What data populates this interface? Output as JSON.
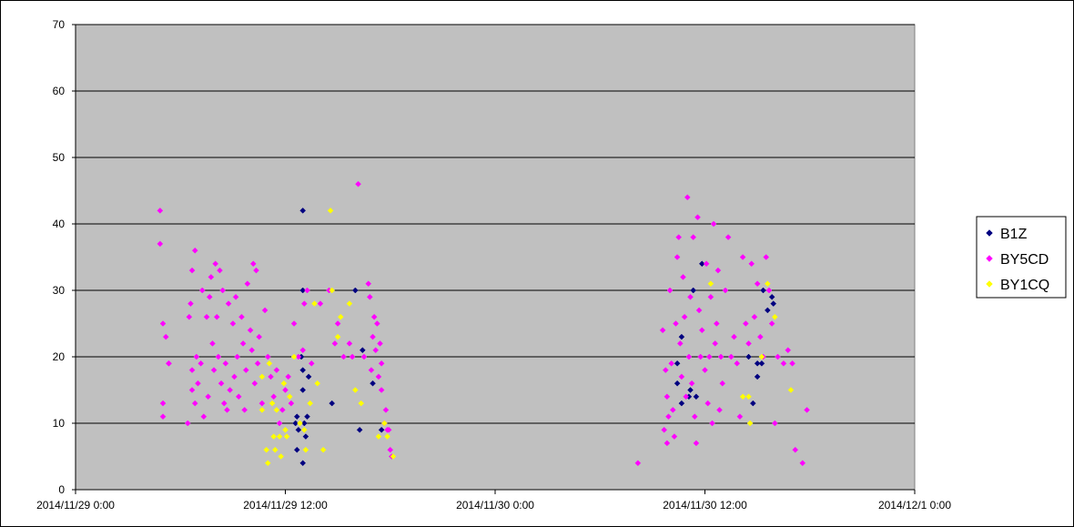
{
  "chart_data": {
    "type": "scatter",
    "title": "",
    "xlabel": "",
    "ylabel": "",
    "xlim": [
      "2014/11/29 0:00",
      "2014/12/1 0:00"
    ],
    "ylim": [
      0,
      70
    ],
    "x_ticks": [
      "2014/11/29 0:00",
      "2014/11/29 12:00",
      "2014/11/30 0:00",
      "2014/11/30 12:00",
      "2014/12/1 0:00"
    ],
    "y_ticks": [
      0,
      10,
      20,
      30,
      40,
      50,
      60,
      70
    ],
    "grid": true,
    "legend_position": "right",
    "plot_background": "#c0c0c0",
    "series": [
      {
        "name": "B1Z",
        "color": "#000080",
        "points": [
          [
            "2014/11/29 13:00",
            42
          ],
          [
            "2014/11/29 13:00",
            30
          ],
          [
            "2014/11/29 13:15",
            30
          ],
          [
            "2014/11/29 16:00",
            30
          ],
          [
            "2014/11/29 12:55",
            20
          ],
          [
            "2014/11/29 13:00",
            18
          ],
          [
            "2014/11/29 13:20",
            17
          ],
          [
            "2014/11/29 13:00",
            15
          ],
          [
            "2014/11/29 12:40",
            11
          ],
          [
            "2014/11/29 12:35",
            10
          ],
          [
            "2014/11/29 13:05",
            10
          ],
          [
            "2014/11/29 13:15",
            11
          ],
          [
            "2014/11/29 12:45",
            9
          ],
          [
            "2014/11/29 13:10",
            8
          ],
          [
            "2014/11/29 12:40",
            6
          ],
          [
            "2014/11/29 13:00",
            4
          ],
          [
            "2014/11/29 14:40",
            13
          ],
          [
            "2014/11/29 16:25",
            21
          ],
          [
            "2014/11/29 17:00",
            16
          ],
          [
            "2014/11/29 16:15",
            9
          ],
          [
            "2014/11/29 17:30",
            9
          ],
          [
            "2014/11/30 10:25",
            19
          ],
          [
            "2014/11/30 10:40",
            23
          ],
          [
            "2014/11/30 10:25",
            16
          ],
          [
            "2014/11/30 10:40",
            13
          ],
          [
            "2014/11/30 11:05",
            14
          ],
          [
            "2014/11/30 11:10",
            15
          ],
          [
            "2014/11/30 11:20",
            30
          ],
          [
            "2014/11/30 11:30",
            14
          ],
          [
            "2014/11/30 11:50",
            34
          ],
          [
            "2014/11/30 14:30",
            20
          ],
          [
            "2014/11/30 14:45",
            13
          ],
          [
            "2014/11/30 15:00",
            19
          ],
          [
            "2014/11/30 15:00",
            17
          ],
          [
            "2014/11/30 15:15",
            19
          ],
          [
            "2014/11/30 15:20",
            30
          ],
          [
            "2014/11/30 15:35",
            27
          ],
          [
            "2014/11/30 15:50",
            29
          ],
          [
            "2014/11/30 15:55",
            28
          ]
        ]
      },
      {
        "name": "BY5CD",
        "color": "#ff00ff",
        "points": [
          [
            "2014/11/29 4:50",
            42
          ],
          [
            "2014/11/29 4:50",
            37
          ],
          [
            "2014/11/29 5:00",
            25
          ],
          [
            "2014/11/29 5:10",
            23
          ],
          [
            "2014/11/29 5:20",
            19
          ],
          [
            "2014/11/29 5:00",
            13
          ],
          [
            "2014/11/29 5:00",
            11
          ],
          [
            "2014/11/29 5:20",
            19
          ],
          [
            "2014/11/29 6:25",
            10
          ],
          [
            "2014/11/29 6:30",
            26
          ],
          [
            "2014/11/29 6:40",
            33
          ],
          [
            "2014/11/29 6:50",
            36
          ],
          [
            "2014/11/29 6:35",
            28
          ],
          [
            "2014/11/29 6:40",
            18
          ],
          [
            "2014/11/29 6:40",
            15
          ],
          [
            "2014/11/29 6:50",
            13
          ],
          [
            "2014/11/29 6:55",
            20
          ],
          [
            "2014/11/29 7:00",
            16
          ],
          [
            "2014/11/29 7:10",
            19
          ],
          [
            "2014/11/29 7:15",
            30
          ],
          [
            "2014/11/29 7:20",
            11
          ],
          [
            "2014/11/29 7:30",
            26
          ],
          [
            "2014/11/29 7:35",
            14
          ],
          [
            "2014/11/29 7:40",
            29
          ],
          [
            "2014/11/29 7:45",
            32
          ],
          [
            "2014/11/29 7:50",
            22
          ],
          [
            "2014/11/29 7:55",
            18
          ],
          [
            "2014/11/29 8:00",
            34
          ],
          [
            "2014/11/29 8:05",
            26
          ],
          [
            "2014/11/29 8:10",
            20
          ],
          [
            "2014/11/29 8:15",
            33
          ],
          [
            "2014/11/29 8:20",
            16
          ],
          [
            "2014/11/29 8:25",
            30
          ],
          [
            "2014/11/29 8:30",
            13
          ],
          [
            "2014/11/29 8:35",
            19
          ],
          [
            "2014/11/29 8:40",
            12
          ],
          [
            "2014/11/29 8:45",
            28
          ],
          [
            "2014/11/29 8:50",
            15
          ],
          [
            "2014/11/29 9:00",
            25
          ],
          [
            "2014/11/29 9:05",
            17
          ],
          [
            "2014/11/29 9:10",
            29
          ],
          [
            "2014/11/29 9:15",
            20
          ],
          [
            "2014/11/29 9:20",
            14
          ],
          [
            "2014/11/29 9:30",
            26
          ],
          [
            "2014/11/29 9:35",
            22
          ],
          [
            "2014/11/29 9:40",
            12
          ],
          [
            "2014/11/29 9:45",
            18
          ],
          [
            "2014/11/29 9:50",
            31
          ],
          [
            "2014/11/29 10:00",
            24
          ],
          [
            "2014/11/29 10:05",
            21
          ],
          [
            "2014/11/29 10:10",
            34
          ],
          [
            "2014/11/29 10:15",
            16
          ],
          [
            "2014/11/29 10:20",
            33
          ],
          [
            "2014/11/29 10:25",
            19
          ],
          [
            "2014/11/29 10:30",
            23
          ],
          [
            "2014/11/29 10:40",
            13
          ],
          [
            "2014/11/29 10:50",
            27
          ],
          [
            "2014/11/29 11:00",
            20
          ],
          [
            "2014/11/29 11:10",
            17
          ],
          [
            "2014/11/29 11:20",
            14
          ],
          [
            "2014/11/29 11:30",
            18
          ],
          [
            "2014/11/29 11:40",
            10
          ],
          [
            "2014/11/29 11:50",
            12
          ],
          [
            "2014/11/29 12:00",
            15
          ],
          [
            "2014/11/29 12:10",
            17
          ],
          [
            "2014/11/29 12:20",
            13
          ],
          [
            "2014/11/29 12:30",
            25
          ],
          [
            "2014/11/29 12:45",
            20
          ],
          [
            "2014/11/29 13:00",
            21
          ],
          [
            "2014/11/29 13:05",
            28
          ],
          [
            "2014/11/29 13:15",
            30
          ],
          [
            "2014/11/29 13:30",
            19
          ],
          [
            "2014/11/29 14:00",
            28
          ],
          [
            "2014/11/29 14:30",
            30
          ],
          [
            "2014/11/29 14:50",
            22
          ],
          [
            "2014/11/29 15:00",
            25
          ],
          [
            "2014/11/29 15:20",
            20
          ],
          [
            "2014/11/29 15:40",
            22
          ],
          [
            "2014/11/29 15:50",
            20
          ],
          [
            "2014/11/29 16:10",
            46
          ],
          [
            "2014/11/29 16:30",
            20
          ],
          [
            "2014/11/29 16:45",
            31
          ],
          [
            "2014/11/29 16:50",
            29
          ],
          [
            "2014/11/29 16:55",
            18
          ],
          [
            "2014/11/29 17:00",
            23
          ],
          [
            "2014/11/29 17:05",
            26
          ],
          [
            "2014/11/29 17:10",
            21
          ],
          [
            "2014/11/29 17:15",
            25
          ],
          [
            "2014/11/29 17:20",
            17
          ],
          [
            "2014/11/29 17:25",
            22
          ],
          [
            "2014/11/29 17:30",
            19
          ],
          [
            "2014/11/29 17:30",
            15
          ],
          [
            "2014/11/29 17:40",
            10
          ],
          [
            "2014/11/29 17:45",
            12
          ],
          [
            "2014/11/29 17:50",
            9
          ],
          [
            "2014/11/29 17:55",
            9
          ],
          [
            "2014/11/29 18:00",
            6
          ],
          [
            "2014/11/29 18:05",
            5
          ],
          [
            "2014/11/30 8:10",
            4
          ],
          [
            "2014/11/30 9:35",
            24
          ],
          [
            "2014/11/30 9:45",
            18
          ],
          [
            "2014/11/30 9:50",
            14
          ],
          [
            "2014/11/30 9:40",
            9
          ],
          [
            "2014/11/30 9:50",
            7
          ],
          [
            "2014/11/30 9:55",
            11
          ],
          [
            "2014/11/30 10:00",
            30
          ],
          [
            "2014/11/30 10:05",
            19
          ],
          [
            "2014/11/30 10:10",
            12
          ],
          [
            "2014/11/30 10:15",
            8
          ],
          [
            "2014/11/30 10:20",
            25
          ],
          [
            "2014/11/30 10:25",
            35
          ],
          [
            "2014/11/30 10:30",
            38
          ],
          [
            "2014/11/30 10:35",
            22
          ],
          [
            "2014/11/30 10:40",
            17
          ],
          [
            "2014/11/30 10:45",
            32
          ],
          [
            "2014/11/30 10:50",
            26
          ],
          [
            "2014/11/30 10:55",
            14
          ],
          [
            "2014/11/30 11:00",
            44
          ],
          [
            "2014/11/30 11:05",
            20
          ],
          [
            "2014/11/30 11:10",
            29
          ],
          [
            "2014/11/30 11:15",
            16
          ],
          [
            "2014/11/30 11:20",
            38
          ],
          [
            "2014/11/30 11:25",
            11
          ],
          [
            "2014/11/30 11:30",
            7
          ],
          [
            "2014/11/30 11:35",
            41
          ],
          [
            "2014/11/30 11:40",
            27
          ],
          [
            "2014/11/30 11:45",
            20
          ],
          [
            "2014/11/30 11:50",
            24
          ],
          [
            "2014/11/30 12:00",
            18
          ],
          [
            "2014/11/30 12:05",
            34
          ],
          [
            "2014/11/30 12:10",
            13
          ],
          [
            "2014/11/30 12:15",
            20
          ],
          [
            "2014/11/30 12:20",
            29
          ],
          [
            "2014/11/30 12:25",
            10
          ],
          [
            "2014/11/30 12:30",
            40
          ],
          [
            "2014/11/30 12:35",
            22
          ],
          [
            "2014/11/30 12:40",
            25
          ],
          [
            "2014/11/30 12:45",
            33
          ],
          [
            "2014/11/30 12:50",
            12
          ],
          [
            "2014/11/30 12:55",
            20
          ],
          [
            "2014/11/30 13:00",
            16
          ],
          [
            "2014/11/30 13:10",
            30
          ],
          [
            "2014/11/30 13:20",
            38
          ],
          [
            "2014/11/30 13:30",
            20
          ],
          [
            "2014/11/30 13:40",
            23
          ],
          [
            "2014/11/30 13:50",
            19
          ],
          [
            "2014/11/30 14:00",
            11
          ],
          [
            "2014/11/30 14:10",
            35
          ],
          [
            "2014/11/30 14:20",
            25
          ],
          [
            "2014/11/30 14:30",
            22
          ],
          [
            "2014/11/30 14:40",
            34
          ],
          [
            "2014/11/30 14:50",
            26
          ],
          [
            "2014/11/30 15:00",
            31
          ],
          [
            "2014/11/30 15:10",
            23
          ],
          [
            "2014/11/30 15:20",
            20
          ],
          [
            "2014/11/30 15:30",
            35
          ],
          [
            "2014/11/30 15:40",
            30
          ],
          [
            "2014/11/30 15:50",
            25
          ],
          [
            "2014/11/30 16:00",
            10
          ],
          [
            "2014/11/30 16:10",
            20
          ],
          [
            "2014/11/30 16:30",
            19
          ],
          [
            "2014/11/30 16:45",
            21
          ],
          [
            "2014/11/30 17:00",
            19
          ],
          [
            "2014/11/30 17:10",
            6
          ],
          [
            "2014/11/30 17:35",
            4
          ],
          [
            "2014/11/30 17:50",
            12
          ]
        ]
      },
      {
        "name": "BY1CQ",
        "color": "#ffff00",
        "points": [
          [
            "2014/11/29 10:40",
            17
          ],
          [
            "2014/11/29 10:40",
            12
          ],
          [
            "2014/11/29 10:55",
            6
          ],
          [
            "2014/11/29 11:00",
            4
          ],
          [
            "2014/11/29 11:05",
            19
          ],
          [
            "2014/11/29 11:15",
            13
          ],
          [
            "2014/11/29 11:20",
            8
          ],
          [
            "2014/11/29 11:25",
            6
          ],
          [
            "2014/11/29 11:30",
            12
          ],
          [
            "2014/11/29 11:40",
            8
          ],
          [
            "2014/11/29 11:45",
            5
          ],
          [
            "2014/11/29 11:55",
            16
          ],
          [
            "2014/11/29 12:00",
            9
          ],
          [
            "2014/11/29 12:05",
            8
          ],
          [
            "2014/11/29 12:15",
            14
          ],
          [
            "2014/11/29 12:30",
            20
          ],
          [
            "2014/11/29 12:50",
            10
          ],
          [
            "2014/11/29 13:05",
            9
          ],
          [
            "2014/11/29 13:10",
            6
          ],
          [
            "2014/11/29 13:25",
            13
          ],
          [
            "2014/11/29 13:40",
            28
          ],
          [
            "2014/11/29 13:50",
            16
          ],
          [
            "2014/11/29 14:10",
            6
          ],
          [
            "2014/11/29 14:35",
            42
          ],
          [
            "2014/11/29 14:40",
            30
          ],
          [
            "2014/11/29 15:00",
            23
          ],
          [
            "2014/11/29 15:10",
            26
          ],
          [
            "2014/11/29 15:40",
            28
          ],
          [
            "2014/11/29 16:00",
            15
          ],
          [
            "2014/11/29 16:20",
            13
          ],
          [
            "2014/11/29 17:20",
            8
          ],
          [
            "2014/11/29 17:40",
            10
          ],
          [
            "2014/11/29 17:50",
            8
          ],
          [
            "2014/11/29 18:10",
            5
          ],
          [
            "2014/11/30 12:20",
            31
          ],
          [
            "2014/11/30 14:10",
            14
          ],
          [
            "2014/11/30 14:30",
            14
          ],
          [
            "2014/11/30 14:35",
            10
          ],
          [
            "2014/11/30 15:15",
            20
          ],
          [
            "2014/11/30 15:35",
            31
          ],
          [
            "2014/11/30 16:00",
            26
          ],
          [
            "2014/11/30 16:55",
            15
          ]
        ]
      }
    ]
  }
}
